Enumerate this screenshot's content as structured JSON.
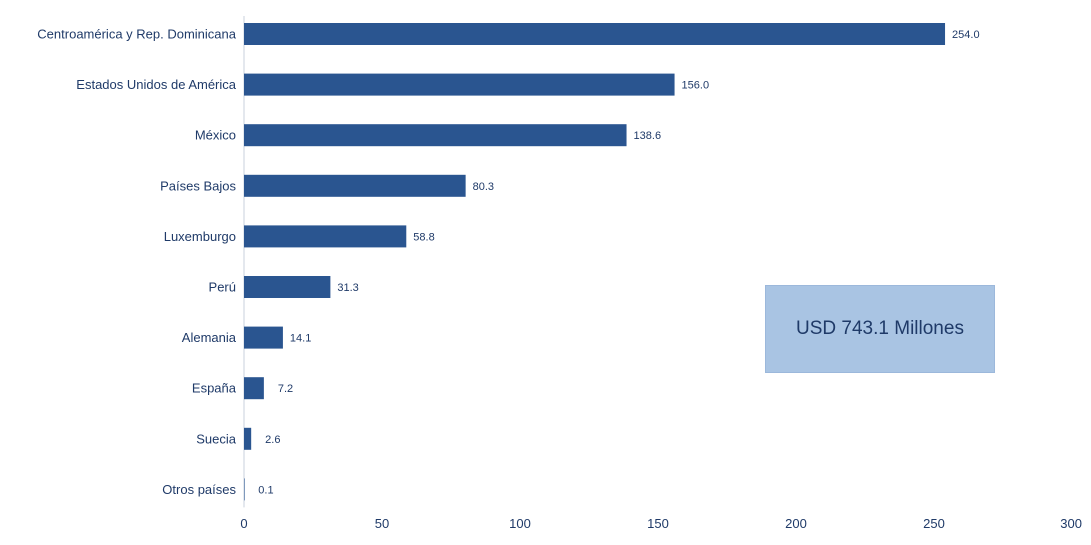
{
  "chart_data": {
    "type": "bar",
    "orientation": "horizontal",
    "categories": [
      "Centroamérica y Rep. Dominicana",
      "Estados Unidos de América",
      "México",
      "Países Bajos",
      "Luxemburgo",
      "Perú",
      "Alemania",
      "España",
      "Suecia",
      "Otros países"
    ],
    "values": [
      254.0,
      156.0,
      138.6,
      80.3,
      58.8,
      31.3,
      14.1,
      7.2,
      2.6,
      0.1
    ],
    "value_labels": [
      "254.0",
      "156.0",
      "138.6",
      "80.3",
      "58.8",
      "31.3",
      "14.1",
      "7.2",
      "2.6",
      "0.1"
    ],
    "xlim": [
      0,
      300
    ],
    "xticks": [
      0,
      50,
      100,
      150,
      200,
      250,
      300
    ],
    "title": "",
    "xlabel": "",
    "ylabel": "",
    "grid": false,
    "bar_color": "#2a5590",
    "text_color": "#1f3a68"
  },
  "total_box": {
    "text": "USD 743.1 Millones",
    "background": "#a9c4e3"
  }
}
